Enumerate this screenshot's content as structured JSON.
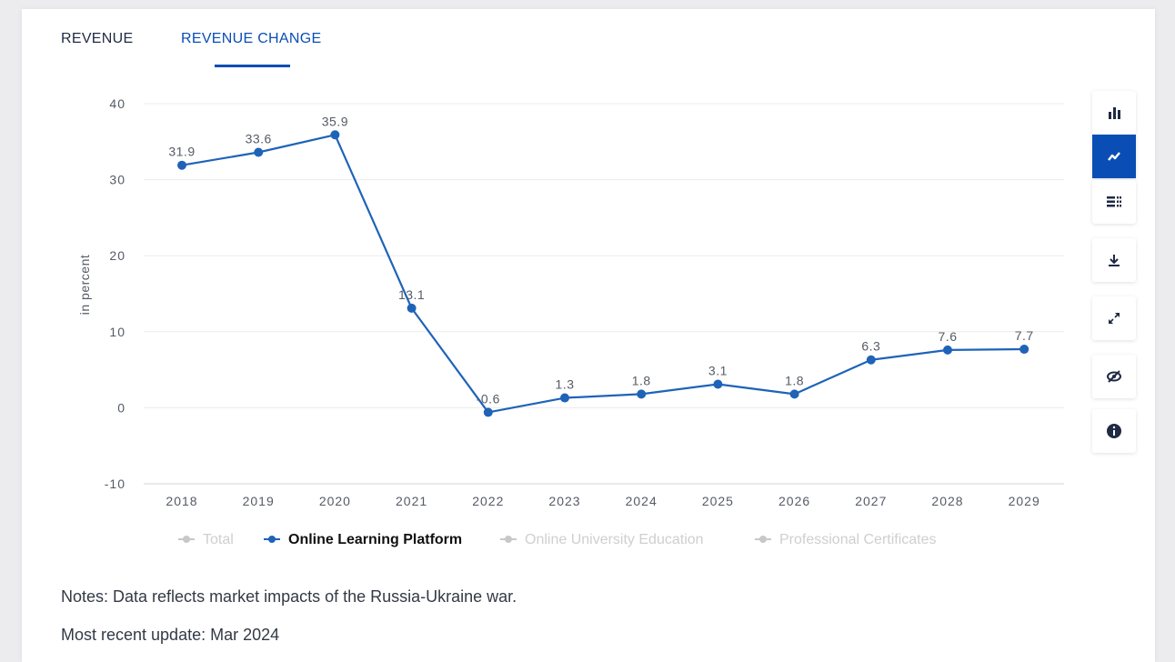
{
  "tabs": [
    {
      "label": "REVENUE",
      "active": false
    },
    {
      "label": "REVENUE CHANGE",
      "active": true
    }
  ],
  "toolbar": [
    {
      "icon": "bar-chart-icon",
      "active": false
    },
    {
      "icon": "line-chart-icon",
      "active": true
    },
    {
      "icon": "table-icon",
      "active": false
    },
    {
      "icon": "download-icon",
      "active": false
    },
    {
      "icon": "expand-icon",
      "active": false
    },
    {
      "icon": "hide-icon",
      "active": false
    },
    {
      "icon": "info-icon",
      "active": false
    }
  ],
  "notes": "Notes: Data reflects market impacts of the Russia-Ukraine war.",
  "update": "Most recent update: Mar 2024",
  "colors": {
    "accent": "#0a4eb5",
    "series": "#1e63b8",
    "legend_inactive": "#c8c8c8"
  },
  "chart_data": {
    "type": "line",
    "ylabel": "in percent",
    "ylim": [
      -10,
      40
    ],
    "yticks": [
      -10,
      0,
      10,
      20,
      30,
      40
    ],
    "categories": [
      "2018",
      "2019",
      "2020",
      "2021",
      "2022",
      "2023",
      "2024",
      "2025",
      "2026",
      "2027",
      "2028",
      "2029"
    ],
    "series": [
      {
        "name": "Online Learning Platform",
        "values": [
          31.9,
          33.6,
          35.9,
          13.1,
          -0.6,
          1.3,
          1.8,
          3.1,
          1.8,
          6.3,
          7.6,
          7.7
        ],
        "labels": [
          "31.9",
          "33.6",
          "35.9",
          "13.1",
          "-0.6",
          "1.3",
          "1.8",
          "3.1",
          "1.8",
          "6.3",
          "7.6",
          "7.7"
        ]
      }
    ],
    "legend": [
      {
        "name": "Total",
        "active": false
      },
      {
        "name": "Online Learning Platform",
        "active": true
      },
      {
        "name": "Online University Education",
        "active": false
      },
      {
        "name": "Professional Certificates",
        "active": false
      }
    ],
    "legend_position": "bottom",
    "grid": true
  }
}
